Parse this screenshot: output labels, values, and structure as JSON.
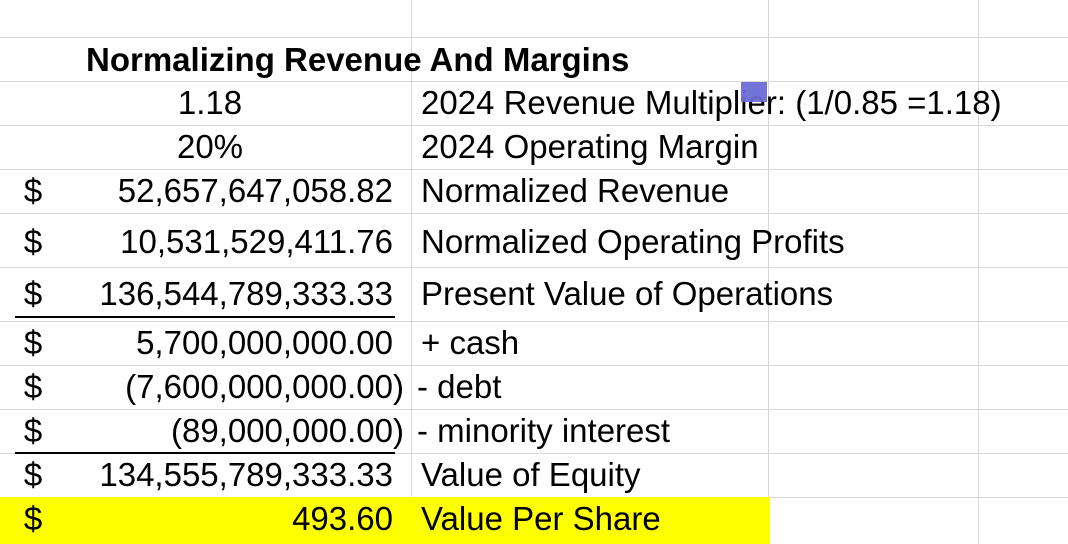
{
  "sheet": {
    "title": "Normalizing Revenue And Margins",
    "highlight_color": "#ffff00",
    "rows": [
      {
        "symbol": "",
        "value": "1.18",
        "label": "2024 Revenue Multiplier: (1/0.85 =1.18)"
      },
      {
        "symbol": "",
        "value": "20%",
        "label": "2024 Operating Margin"
      },
      {
        "symbol": "$",
        "value": "52,657,647,058.82",
        "label": "Normalized Revenue"
      },
      {
        "symbol": "$",
        "value": "10,531,529,411.76",
        "label": "Normalized Operating Profits"
      },
      {
        "symbol": "$",
        "value": "136,544,789,333.33",
        "label": "Present Value of Operations"
      },
      {
        "symbol": "$",
        "value": "5,700,000,000.00",
        "label": "+ cash"
      },
      {
        "symbol": "$",
        "value": "(7,600,000,000.00)",
        "label": "- debt"
      },
      {
        "symbol": "$",
        "value": "(89,000,000.00)",
        "label": "- minority interest"
      },
      {
        "symbol": "$",
        "value": "134,555,789,333.33",
        "label": "Value of Equity"
      },
      {
        "symbol": "$",
        "value": "493.60",
        "label": "Value Per Share"
      }
    ]
  }
}
